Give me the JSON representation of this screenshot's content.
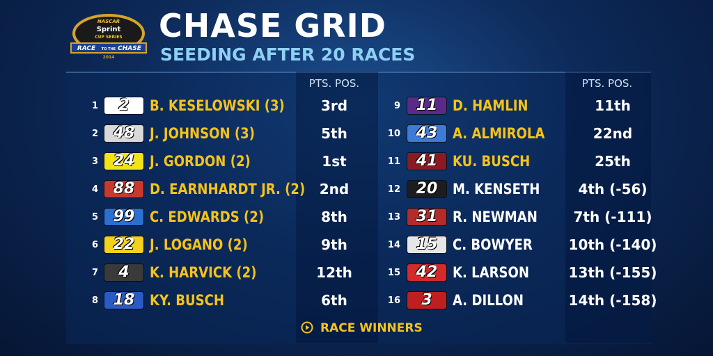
{
  "logo": {
    "brand": "NASCAR",
    "sponsor": "Sprint",
    "series": "CUP SERIES",
    "event_top": "RACE",
    "event_mid": "TO THE",
    "event_bottom": "CHASE",
    "year": "2014"
  },
  "header": {
    "title": "CHASE GRID",
    "subtitle": "SEEDING AFTER 20 RACES"
  },
  "columns": [
    {
      "header": "PTS. POS.",
      "rows": [
        {
          "seed": 1,
          "car": "2",
          "driver": "B. KESELOWSKI (3)",
          "position": "3rd",
          "winner": true,
          "badge": "#ffffff"
        },
        {
          "seed": 2,
          "car": "48",
          "driver": "J. JOHNSON (3)",
          "position": "5th",
          "winner": true,
          "badge": "#d9d9d9"
        },
        {
          "seed": 3,
          "car": "24",
          "driver": "J. GORDON (2)",
          "position": "1st",
          "winner": true,
          "badge": "#f2e21a"
        },
        {
          "seed": 4,
          "car": "88",
          "driver": "D. EARNHARDT JR. (2)",
          "position": "2nd",
          "winner": true,
          "badge": "#c8392e"
        },
        {
          "seed": 5,
          "car": "99",
          "driver": "C. EDWARDS (2)",
          "position": "8th",
          "winner": true,
          "badge": "#2c6fd1"
        },
        {
          "seed": 6,
          "car": "22",
          "driver": "J. LOGANO (2)",
          "position": "9th",
          "winner": true,
          "badge": "#f2d21a"
        },
        {
          "seed": 7,
          "car": "4",
          "driver": "K. HARVICK (2)",
          "position": "12th",
          "winner": true,
          "badge": "#3a3a3a"
        },
        {
          "seed": 8,
          "car": "18",
          "driver": "KY. BUSCH",
          "position": "6th",
          "winner": true,
          "badge": "#2a5bc4"
        }
      ]
    },
    {
      "header": "PTS. POS.",
      "rows": [
        {
          "seed": 9,
          "car": "11",
          "driver": "D. HAMLIN",
          "position": "11th",
          "winner": true,
          "badge": "#5b2a86"
        },
        {
          "seed": 10,
          "car": "43",
          "driver": "A. ALMIROLA",
          "position": "22nd",
          "winner": true,
          "badge": "#3f7bd6"
        },
        {
          "seed": 11,
          "car": "41",
          "driver": "KU. BUSCH",
          "position": "25th",
          "winner": true,
          "badge": "#8a1b20"
        },
        {
          "seed": 12,
          "car": "20",
          "driver": "M. KENSETH",
          "position": "4th (-56)",
          "winner": false,
          "badge": "#1d1d1d"
        },
        {
          "seed": 13,
          "car": "31",
          "driver": "R. NEWMAN",
          "position": "7th (-111)",
          "winner": false,
          "badge": "#b52a2a"
        },
        {
          "seed": 14,
          "car": "15",
          "driver": "C. BOWYER",
          "position": "10th (-140)",
          "winner": false,
          "badge": "#e6e6e6"
        },
        {
          "seed": 15,
          "car": "42",
          "driver": "K. LARSON",
          "position": "13th (-155)",
          "winner": false,
          "badge": "#d42a2a"
        },
        {
          "seed": 16,
          "car": "3",
          "driver": "A. DILLON",
          "position": "14th (-158)",
          "winner": false,
          "badge": "#c01f1f"
        }
      ]
    }
  ],
  "footer": "RACE WINNERS"
}
